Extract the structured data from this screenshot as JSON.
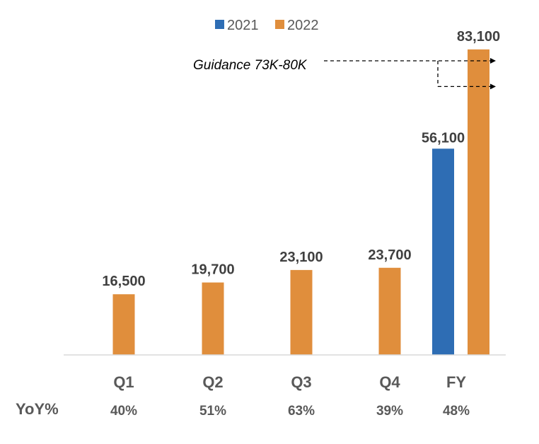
{
  "chart_data": {
    "type": "bar",
    "categories": [
      "Q1",
      "Q2",
      "Q3",
      "Q4",
      "FY"
    ],
    "series": [
      {
        "name": "2021",
        "color": "#2E6DB4",
        "values": [
          null,
          null,
          null,
          null,
          56100
        ]
      },
      {
        "name": "2022",
        "color": "#E08E3C",
        "values": [
          16500,
          19700,
          23100,
          23700,
          83100
        ]
      }
    ],
    "data_labels": {
      "2021": [
        "",
        "",
        "",
        "",
        "56,100"
      ],
      "2022": [
        "16,500",
        "19,700",
        "23,100",
        "23,700",
        "83,100"
      ]
    },
    "yoy_title": "YoY%",
    "yoy": [
      "40%",
      "51%",
      "63%",
      "39%",
      "48%"
    ],
    "annotation": {
      "text": "Guidance 73K-80K",
      "range": [
        73000,
        80000
      ]
    },
    "ylim": [
      0,
      85000
    ],
    "grid": false,
    "legend": "top-center"
  }
}
